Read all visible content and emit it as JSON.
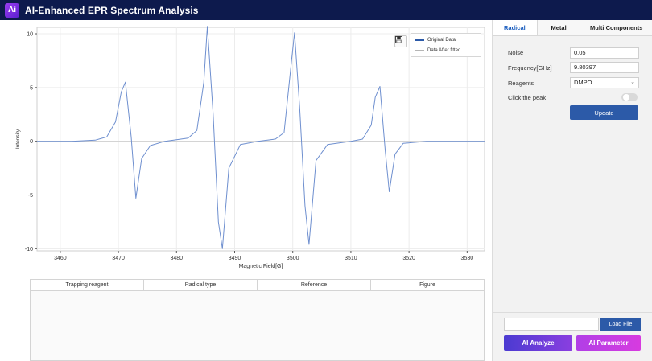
{
  "app": {
    "logo": "Ai",
    "title": "AI-Enhanced EPR Spectrum Analysis"
  },
  "chart_data": {
    "type": "line",
    "xlabel": "Magnetic Field[G]",
    "ylabel": "Intensity",
    "xlim": [
      3456,
      3533
    ],
    "ylim": [
      -10.2,
      10.6
    ],
    "x_ticks": [
      3460,
      3470,
      3480,
      3490,
      3500,
      3510,
      3520,
      3530
    ],
    "y_ticks": [
      10,
      5,
      0,
      -5,
      -10
    ],
    "legend": {
      "position": "top-right",
      "entries": [
        "Original Data",
        "Data After fitted"
      ]
    },
    "series": [
      {
        "name": "Original Data",
        "color": "#6e8fcf",
        "x": [
          3456,
          3462,
          3466,
          3468,
          3469.5,
          3470.5,
          3471.2,
          3472.2,
          3473.0,
          3474.0,
          3475.5,
          3478,
          3482,
          3483.5,
          3484.7,
          3485.3,
          3486.3,
          3487.2,
          3487.9,
          3489.0,
          3491,
          3494,
          3497,
          3498.5,
          3499.7,
          3500.3,
          3501.2,
          3502.1,
          3502.8,
          3504.0,
          3506,
          3510,
          3512,
          3513.5,
          3514.2,
          3515.0,
          3515.9,
          3516.6,
          3517.6,
          3519,
          3523,
          3528,
          3533
        ],
        "y": [
          0,
          0,
          0.1,
          0.4,
          1.8,
          4.6,
          5.5,
          0.4,
          -5.3,
          -1.6,
          -0.4,
          0,
          0.3,
          1.0,
          5.5,
          10.7,
          2.5,
          -7.5,
          -10.0,
          -2.5,
          -0.3,
          0,
          0.2,
          0.8,
          7.0,
          10.1,
          3.0,
          -6.0,
          -9.6,
          -1.8,
          -0.3,
          0,
          0.2,
          1.5,
          4.1,
          5.1,
          -0.8,
          -4.7,
          -1.2,
          -0.2,
          0,
          0,
          0
        ]
      }
    ]
  },
  "toolbar": {
    "save_icon": "save-icon"
  },
  "table": {
    "headers": [
      "Trapping reagent",
      "Radical type",
      "Reference",
      "Figure"
    ],
    "rows": []
  },
  "side": {
    "tabs": [
      "Radical",
      "Metal",
      "Multi Components"
    ],
    "active_tab": "Radical",
    "noise_label": "Noise",
    "noise_value": "0.05",
    "freq_label": "Frequency[GHz]",
    "freq_value": "9.80397",
    "reagents_label": "Reagents",
    "reagents_value": "DMPO",
    "peak_label": "Click the peak",
    "update_label": "Update",
    "load_label": "Load File",
    "ai_analyze_label": "AI Analyze",
    "ai_param_label": "AI Parameter"
  }
}
